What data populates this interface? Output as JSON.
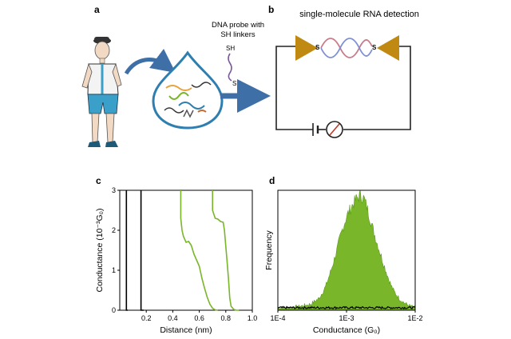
{
  "panels": {
    "a": {
      "letter": "a",
      "probe_label_line1": "DNA probe with",
      "probe_label_line2": "SH linkers",
      "sh_top": "SH",
      "sh_bottom": "SH"
    },
    "b": {
      "letter": "b",
      "title": "single-molecule RNA detection",
      "s_left": "S",
      "s_right": "S"
    },
    "c": {
      "letter": "c"
    },
    "d": {
      "letter": "d"
    }
  },
  "colors": {
    "gold": "#c08a12",
    "green": "#7ab62a",
    "green_dark": "#5b9a1e",
    "blue_arrow": "#3e6fa6",
    "drop_blue": "#2e7fb0",
    "black": "#000000",
    "helix_red": "#c97b8a",
    "helix_blue": "#7f8fd6"
  },
  "chart_data": [
    {
      "type": "line",
      "panel": "c",
      "xlabel": "Distance (nm)",
      "ylabel": "Conductance (10⁻³G₀)",
      "xlim": [
        0.0,
        1.0
      ],
      "ylim": [
        0,
        3
      ],
      "x_ticks": [
        0.2,
        0.4,
        0.6,
        0.8,
        1.0
      ],
      "x_tick_labels": [
        "0.2",
        "0.4",
        "0.6",
        "0.8",
        "1.0"
      ],
      "y_ticks": [
        0,
        1,
        2,
        3
      ],
      "y_tick_labels": [
        "0",
        "1",
        "2",
        "3"
      ],
      "series": [
        {
          "color": "#000000",
          "points": [
            [
              0.05,
              3.0
            ],
            [
              0.05,
              0.0
            ],
            [
              0.06,
              0.0
            ]
          ]
        },
        {
          "color": "#000000",
          "points": [
            [
              0.16,
              3.0
            ],
            [
              0.16,
              0.0
            ],
            [
              0.18,
              0.0
            ]
          ]
        },
        {
          "color": "#7ab62a",
          "points": [
            [
              0.46,
              3.0
            ],
            [
              0.46,
              2.3
            ],
            [
              0.47,
              2.0
            ],
            [
              0.48,
              1.85
            ],
            [
              0.5,
              1.7
            ],
            [
              0.52,
              1.72
            ],
            [
              0.54,
              1.62
            ],
            [
              0.56,
              1.4
            ],
            [
              0.58,
              1.25
            ],
            [
              0.6,
              1.1
            ],
            [
              0.62,
              0.8
            ],
            [
              0.64,
              0.55
            ],
            [
              0.66,
              0.32
            ],
            [
              0.68,
              0.15
            ],
            [
              0.7,
              0.05
            ],
            [
              0.72,
              0.01
            ],
            [
              0.74,
              0.0
            ]
          ]
        },
        {
          "color": "#7ab62a",
          "points": [
            [
              0.7,
              3.0
            ],
            [
              0.7,
              2.5
            ],
            [
              0.72,
              2.3
            ],
            [
              0.74,
              2.28
            ],
            [
              0.76,
              2.22
            ],
            [
              0.78,
              2.2
            ],
            [
              0.79,
              2.0
            ],
            [
              0.8,
              1.6
            ],
            [
              0.81,
              1.2
            ],
            [
              0.82,
              0.8
            ],
            [
              0.83,
              0.3
            ],
            [
              0.84,
              0.1
            ],
            [
              0.86,
              0.02
            ],
            [
              0.88,
              0.0
            ],
            [
              0.9,
              0.0
            ]
          ]
        }
      ]
    },
    {
      "type": "area",
      "panel": "d",
      "xlabel": "Conductance (G₀)",
      "ylabel": "Frequency",
      "x_scale": "log",
      "xlim": [
        0.0001,
        0.01
      ],
      "x_ticks": [
        0.0001,
        0.001,
        0.01
      ],
      "x_tick_labels": [
        "1E-4",
        "1E-3",
        "1E-2"
      ],
      "series": [
        {
          "color": "#7ab62a",
          "x": [
            0.0001,
            0.0002,
            0.0003,
            0.0004,
            0.0005,
            0.0006,
            0.0007,
            0.0008,
            0.0009,
            0.001,
            0.0012,
            0.0014,
            0.0016,
            0.0018,
            0.002,
            0.0025,
            0.003,
            0.0035,
            0.004,
            0.0045,
            0.005,
            0.006,
            0.007,
            0.008,
            0.009,
            0.01
          ],
          "values": [
            0.02,
            0.03,
            0.05,
            0.1,
            0.2,
            0.34,
            0.47,
            0.6,
            0.7,
            0.78,
            0.87,
            0.93,
            0.96,
            0.93,
            0.85,
            0.65,
            0.5,
            0.38,
            0.28,
            0.2,
            0.15,
            0.09,
            0.06,
            0.04,
            0.03,
            0.02
          ]
        },
        {
          "color": "#000000",
          "x": [
            0.0001,
            0.0003,
            0.0005,
            0.001,
            0.002,
            0.004,
            0.006,
            0.01
          ],
          "values": [
            0.01,
            0.02,
            0.02,
            0.025,
            0.02,
            0.02,
            0.015,
            0.01
          ]
        }
      ]
    }
  ]
}
